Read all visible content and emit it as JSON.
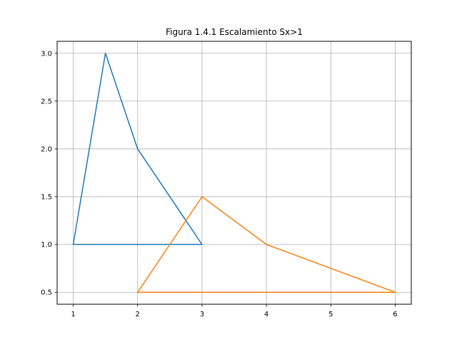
{
  "chart_data": {
    "type": "line",
    "title": "Figura 1.4.1 Escalamiento Sx>1",
    "xlabel": "",
    "ylabel": "",
    "xlim": [
      0.75,
      6.25
    ],
    "ylim": [
      0.375,
      3.125
    ],
    "xticks": [
      1,
      2,
      3,
      4,
      5,
      6
    ],
    "xtick_labels": [
      "1",
      "2",
      "3",
      "4",
      "5",
      "6"
    ],
    "yticks": [
      0.5,
      1.0,
      1.5,
      2.0,
      2.5,
      3.0
    ],
    "ytick_labels": [
      "0.5",
      "1.0",
      "1.5",
      "2.0",
      "2.5",
      "3.0"
    ],
    "grid": true,
    "legend": "none",
    "series": [
      {
        "color": "#1f77b4",
        "x": [
          1,
          3,
          2,
          1.5,
          1
        ],
        "y": [
          1,
          1,
          2,
          3,
          1
        ]
      },
      {
        "color": "#ff7f0e",
        "x": [
          2,
          6,
          4,
          3,
          2
        ],
        "y": [
          0.5,
          0.5,
          1,
          1.5,
          0.5
        ]
      }
    ]
  }
}
